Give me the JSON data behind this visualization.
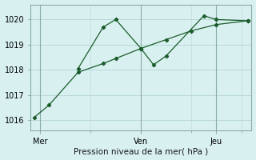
{
  "background_color": "#d8f0f0",
  "grid_color": "#b8d8d8",
  "line_color": "#1a5c2a",
  "xlabel": "Pression niveau de la mer( hPa )",
  "ylim": [
    1015.6,
    1020.6
  ],
  "yticks": [
    1016,
    1017,
    1018,
    1019,
    1020
  ],
  "xlim": [
    -0.3,
    17.3
  ],
  "x_tick_positions": [
    0.5,
    8.5,
    14.5
  ],
  "x_tick_labels": [
    "Mer",
    "Ven",
    "Jeu"
  ],
  "x_vlines": [
    0.5,
    8.5,
    14.5
  ],
  "series1_x": [
    0.0,
    1.2,
    3.5,
    5.5,
    6.5,
    8.5,
    10.5,
    12.5,
    14.5,
    17.0
  ],
  "series1_y": [
    1016.1,
    1016.6,
    1017.9,
    1018.25,
    1018.45,
    1018.85,
    1019.2,
    1019.55,
    1019.8,
    1019.95
  ],
  "series2_x": [
    3.5,
    5.5,
    6.5,
    8.5,
    9.5,
    10.5,
    13.5,
    14.5,
    17.0
  ],
  "series2_y": [
    1018.05,
    1019.7,
    1020.0,
    1018.85,
    1018.2,
    1018.55,
    1020.15,
    1020.0,
    1019.95
  ]
}
